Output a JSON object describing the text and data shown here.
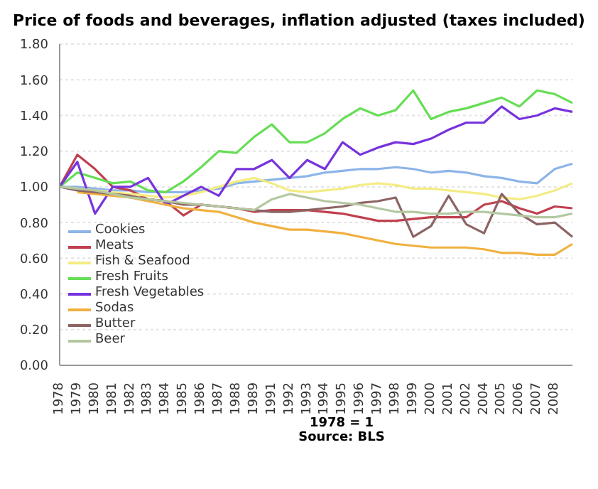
{
  "chart_data": {
    "type": "line",
    "title": "Price of foods and beverages, inflation adjusted (taxes included)",
    "annotations": [
      "1978 = 1",
      "Source: BLS"
    ],
    "categories": [
      "1978",
      "1979",
      "1980",
      "1981",
      "1982",
      "1983",
      "1984",
      "1985",
      "1986",
      "1987",
      "1988",
      "1989",
      "1991",
      "1992",
      "1993",
      "1994",
      "1995",
      "1996",
      "1997",
      "1998",
      "1999",
      "2000",
      "2001",
      "2002",
      "2004",
      "2005",
      "2006",
      "2007",
      "2008",
      null
    ],
    "ylim": [
      0,
      1.8
    ],
    "yticks": [
      {
        "value": 0,
        "label": "0.00"
      },
      {
        "value": 0.2,
        "label": "0.20"
      },
      {
        "value": 0.4,
        "label": "0.40"
      },
      {
        "value": 0.6,
        "label": "0.60"
      },
      {
        "value": 0.8,
        "label": "0.80"
      },
      {
        "value": 1,
        "label": "1.00"
      },
      {
        "value": 1.2,
        "label": "1.20"
      },
      {
        "value": 1.4,
        "label": "1.40"
      },
      {
        "value": 1.6,
        "label": "1.60"
      },
      {
        "value": 1.8,
        "label": "1.80"
      }
    ],
    "grid": "y",
    "legend": "bottom left",
    "marker": "none",
    "line_style": "solid",
    "series": [
      {
        "name": "Cookies",
        "color": "#8cb4e8",
        "values": [
          1.0,
          1.0,
          0.99,
          0.98,
          0.98,
          0.97,
          0.97,
          0.97,
          0.98,
          0.99,
          1.02,
          1.03,
          1.04,
          1.05,
          1.06,
          1.08,
          1.09,
          1.1,
          1.1,
          1.11,
          1.1,
          1.08,
          1.09,
          1.08,
          1.06,
          1.05,
          1.03,
          1.02,
          1.1,
          1.13
        ]
      },
      {
        "name": "Meats",
        "color": "#c0404f",
        "values": [
          1.0,
          1.18,
          1.1,
          1.0,
          0.98,
          0.93,
          0.92,
          0.84,
          0.9,
          0.89,
          0.88,
          0.86,
          0.87,
          0.87,
          0.87,
          0.86,
          0.85,
          0.83,
          0.81,
          0.81,
          0.82,
          0.83,
          0.83,
          0.83,
          0.9,
          0.92,
          0.88,
          0.85,
          0.89,
          0.88
        ]
      },
      {
        "name": "Fish & Seafood",
        "color": "#f4ec84",
        "values": [
          1.0,
          0.99,
          0.98,
          0.97,
          0.96,
          0.95,
          0.94,
          0.95,
          0.97,
          1.0,
          1.03,
          1.05,
          1.02,
          0.98,
          0.97,
          0.98,
          0.99,
          1.01,
          1.02,
          1.01,
          0.99,
          0.99,
          0.98,
          0.97,
          0.96,
          0.94,
          0.93,
          0.95,
          0.98,
          1.02
        ]
      },
      {
        "name": "Fresh Fruits",
        "color": "#66dd55",
        "values": [
          1.0,
          1.08,
          1.05,
          1.02,
          1.03,
          0.98,
          0.97,
          1.03,
          1.11,
          1.2,
          1.19,
          1.28,
          1.35,
          1.25,
          1.25,
          1.3,
          1.38,
          1.44,
          1.4,
          1.43,
          1.54,
          1.38,
          1.42,
          1.44,
          1.47,
          1.5,
          1.45,
          1.54,
          1.52,
          1.47
        ]
      },
      {
        "name": "Fresh Vegetables",
        "color": "#7733dd",
        "values": [
          1.0,
          1.14,
          0.85,
          1.0,
          1.0,
          1.05,
          0.9,
          0.95,
          1.0,
          0.95,
          1.1,
          1.1,
          1.15,
          1.05,
          1.15,
          1.1,
          1.25,
          1.18,
          1.22,
          1.25,
          1.24,
          1.27,
          1.32,
          1.36,
          1.36,
          1.45,
          1.38,
          1.4,
          1.44,
          1.42
        ]
      },
      {
        "name": "Sodas",
        "color": "#f0b040",
        "values": [
          null,
          0.97,
          0.96,
          0.95,
          0.94,
          0.92,
          0.9,
          0.88,
          0.87,
          0.86,
          0.83,
          0.8,
          0.78,
          0.76,
          0.76,
          0.75,
          0.74,
          0.72,
          0.7,
          0.68,
          0.67,
          0.66,
          0.66,
          0.66,
          0.65,
          0.63,
          0.63,
          0.62,
          0.62,
          0.68
        ]
      },
      {
        "name": "Butter",
        "color": "#8c6464",
        "values": [
          1.0,
          0.98,
          0.97,
          0.96,
          0.95,
          0.93,
          0.92,
          0.9,
          0.9,
          0.89,
          0.88,
          0.87,
          0.86,
          0.86,
          0.87,
          0.88,
          0.89,
          0.91,
          0.92,
          0.94,
          0.72,
          0.78,
          0.95,
          0.79,
          0.74,
          0.96,
          0.85,
          0.79,
          0.8,
          0.72
        ]
      },
      {
        "name": "Beer",
        "color": "#b4c8a0",
        "values": [
          1.0,
          0.99,
          0.98,
          0.96,
          0.94,
          0.93,
          0.92,
          0.91,
          0.9,
          0.89,
          0.88,
          0.87,
          0.93,
          0.96,
          0.94,
          0.92,
          0.91,
          0.9,
          0.88,
          0.86,
          0.86,
          0.85,
          0.85,
          0.86,
          0.86,
          0.85,
          0.84,
          0.83,
          0.83,
          0.85
        ]
      }
    ]
  }
}
